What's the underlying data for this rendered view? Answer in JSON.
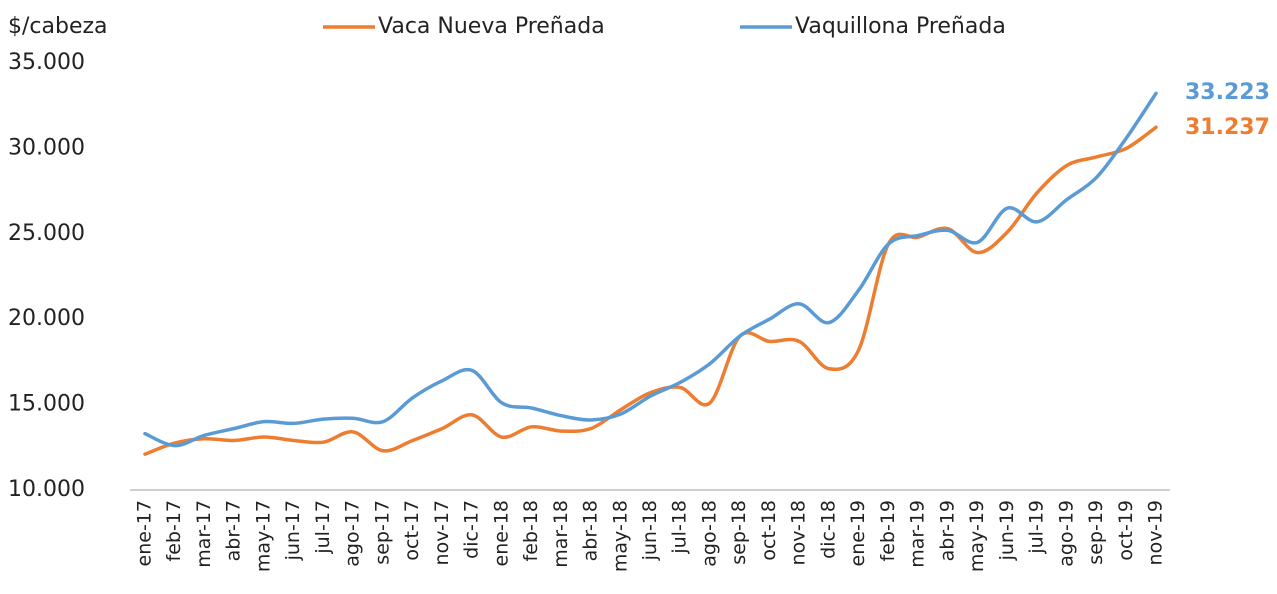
{
  "chart_data": {
    "type": "line",
    "y_axis_label": "$/cabeza",
    "categories": [
      "ene-17",
      "feb-17",
      "mar-17",
      "abr-17",
      "may-17",
      "jun-17",
      "jul-17",
      "ago-17",
      "sep-17",
      "oct-17",
      "nov-17",
      "dic-17",
      "ene-18",
      "feb-18",
      "mar-18",
      "abr-18",
      "may-18",
      "jun-18",
      "jul-18",
      "ago-18",
      "sep-18",
      "oct-18",
      "nov-18",
      "dic-18",
      "ene-19",
      "feb-19",
      "mar-19",
      "abr-19",
      "may-19",
      "jun-19",
      "jul-19",
      "ago-19",
      "sep-19",
      "oct-19",
      "nov-19"
    ],
    "series": [
      {
        "name": "Vaca Nueva Preñada",
        "color": "#ED7D31",
        "values": [
          12100,
          12750,
          13000,
          12900,
          13100,
          12900,
          12800,
          13400,
          12300,
          12900,
          13600,
          14400,
          13100,
          13700,
          13450,
          13600,
          14700,
          15700,
          16000,
          15100,
          19000,
          18700,
          18700,
          17100,
          18200,
          24400,
          24800,
          25300,
          23900,
          25100,
          27400,
          29000,
          29500,
          30000,
          31237
        ],
        "value_labels": [
          null,
          null,
          null,
          null,
          null,
          null,
          null,
          null,
          null,
          null,
          null,
          null,
          null,
          null,
          null,
          null,
          null,
          null,
          null,
          null,
          null,
          null,
          null,
          null,
          null,
          null,
          null,
          null,
          null,
          null,
          null,
          null,
          null,
          null,
          "31.237"
        ]
      },
      {
        "name": "Vaquillona Preñada",
        "color": "#5B9BD5",
        "values": [
          13300,
          12600,
          13200,
          13600,
          14000,
          13900,
          14150,
          14200,
          14000,
          15400,
          16400,
          17000,
          15100,
          14800,
          14350,
          14100,
          14450,
          15500,
          16300,
          17400,
          19000,
          20000,
          20900,
          19800,
          21700,
          24400,
          24900,
          25200,
          24500,
          26500,
          25700,
          27000,
          28300,
          30600,
          33223
        ],
        "value_labels": [
          null,
          null,
          null,
          null,
          null,
          null,
          null,
          null,
          null,
          null,
          null,
          null,
          null,
          null,
          null,
          null,
          null,
          null,
          null,
          null,
          null,
          null,
          null,
          null,
          null,
          null,
          null,
          null,
          null,
          null,
          null,
          null,
          null,
          null,
          "33.223"
        ]
      }
    ],
    "ylim": [
      10000,
      35000
    ],
    "yticks": [
      {
        "value": 10000,
        "label": "10.000"
      },
      {
        "value": 15000,
        "label": "15.000"
      },
      {
        "value": 20000,
        "label": "20.000"
      },
      {
        "value": 25000,
        "label": "25.000"
      },
      {
        "value": 30000,
        "label": "30.000"
      },
      {
        "value": 35000,
        "label": "35.000"
      }
    ],
    "grid": false,
    "legend": "top"
  }
}
